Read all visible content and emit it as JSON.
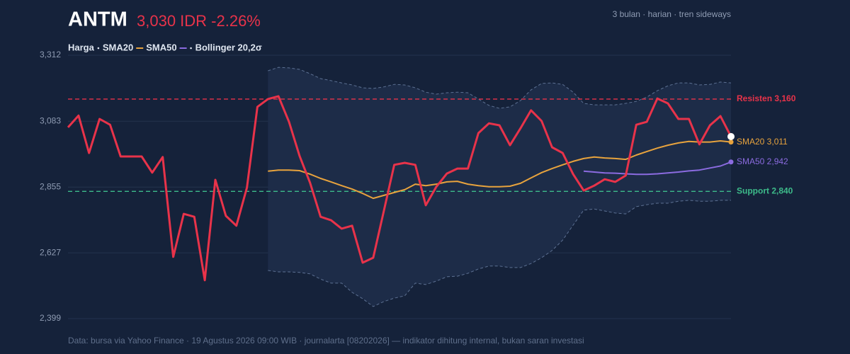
{
  "chart_data": {
    "type": "line",
    "title": "ANTM",
    "subtitle": "3,030 IDR -2.26%",
    "note": "3 bulan · harian · tren sideways",
    "footer": "Data: bursa via Yahoo Finance · 19 Agustus 2026 09:00 WIB · journalarta [08202026] — indikator dihitung internal, bukan saran investasi",
    "ylim": [
      2399,
      3312
    ],
    "yticks": [
      {
        "value": 2399,
        "label": "2,399"
      },
      {
        "value": 2627,
        "label": "2,627"
      },
      {
        "value": 2855,
        "label": "2,855"
      },
      {
        "value": 3083,
        "label": "3,083"
      },
      {
        "value": 3312,
        "label": "3,312"
      }
    ],
    "grid": true,
    "series": [
      {
        "name": "Harga",
        "color": "#e8334a",
        "values": [
          3062,
          3103,
          2973,
          3091,
          3071,
          2961,
          2961,
          2961,
          2905,
          2959,
          2613,
          2762,
          2752,
          2532,
          2880,
          2755,
          2721,
          2853,
          3133,
          3160,
          3170,
          3081,
          2963,
          2870,
          2752,
          2740,
          2711,
          2721,
          2593,
          2610,
          2770,
          2932,
          2939,
          2932,
          2792,
          2856,
          2902,
          2919,
          2919,
          3042,
          3076,
          3069,
          3000,
          3059,
          3121,
          3084,
          2993,
          2973,
          2900,
          2843,
          2860,
          2882,
          2873,
          2895,
          3071,
          3081,
          3162,
          3145,
          3091,
          3091,
          3003,
          3069,
          3101,
          3030
        ]
      },
      {
        "name": "SMA20",
        "color": "#e8a33d",
        "end_label": "SMA20 3,011",
        "values": [
          null,
          null,
          null,
          null,
          null,
          null,
          null,
          null,
          null,
          null,
          null,
          null,
          null,
          null,
          null,
          null,
          null,
          null,
          null,
          2910,
          2914,
          2914,
          2912,
          2900,
          2885,
          2873,
          2860,
          2848,
          2833,
          2816,
          2826,
          2836,
          2846,
          2865,
          2860,
          2865,
          2873,
          2875,
          2865,
          2860,
          2856,
          2856,
          2858,
          2868,
          2887,
          2905,
          2919,
          2932,
          2944,
          2954,
          2959,
          2956,
          2954,
          2951,
          2966,
          2978,
          2990,
          3000,
          3008,
          3013,
          3011,
          3011,
          3015,
          3011
        ]
      },
      {
        "name": "SMA50",
        "color": "#8b6be0",
        "end_label": "SMA50 2,942",
        "values": [
          null,
          null,
          null,
          null,
          null,
          null,
          null,
          null,
          null,
          null,
          null,
          null,
          null,
          null,
          null,
          null,
          null,
          null,
          null,
          null,
          null,
          null,
          null,
          null,
          null,
          null,
          null,
          null,
          null,
          null,
          null,
          null,
          null,
          null,
          null,
          null,
          null,
          null,
          null,
          null,
          null,
          null,
          null,
          null,
          null,
          null,
          null,
          null,
          null,
          2910,
          2907,
          2904,
          2903,
          2901,
          2899,
          2899,
          2901,
          2904,
          2907,
          2911,
          2914,
          2921,
          2928,
          2942
        ]
      },
      {
        "name": "Bollinger 20,2σ",
        "color": "#5d7193",
        "upper": [
          null,
          null,
          null,
          null,
          null,
          null,
          null,
          null,
          null,
          null,
          null,
          null,
          null,
          null,
          null,
          null,
          null,
          null,
          null,
          3258,
          3270,
          3268,
          3263,
          3248,
          3231,
          3224,
          3216,
          3209,
          3199,
          3197,
          3202,
          3211,
          3209,
          3199,
          3184,
          3177,
          3182,
          3184,
          3182,
          3160,
          3138,
          3128,
          3133,
          3155,
          3192,
          3214,
          3216,
          3211,
          3184,
          3145,
          3140,
          3140,
          3140,
          3145,
          3152,
          3167,
          3189,
          3206,
          3216,
          3216,
          3209,
          3211,
          3219,
          3216
        ],
        "lower": [
          null,
          null,
          null,
          null,
          null,
          null,
          null,
          null,
          null,
          null,
          null,
          null,
          null,
          null,
          null,
          null,
          null,
          null,
          null,
          2566,
          2561,
          2561,
          2559,
          2554,
          2536,
          2522,
          2522,
          2490,
          2468,
          2441,
          2458,
          2470,
          2478,
          2522,
          2517,
          2529,
          2544,
          2546,
          2556,
          2571,
          2581,
          2581,
          2576,
          2576,
          2590,
          2610,
          2635,
          2671,
          2723,
          2775,
          2779,
          2772,
          2765,
          2762,
          2787,
          2794,
          2799,
          2799,
          2806,
          2809,
          2806,
          2806,
          2809,
          2809
        ]
      }
    ],
    "levels": [
      {
        "value": 3160,
        "label": "Resisten 3,160",
        "color": "#e8334a"
      },
      {
        "value": 2840,
        "label": "Support 2,840",
        "color": "#3dbb8a"
      }
    ]
  }
}
